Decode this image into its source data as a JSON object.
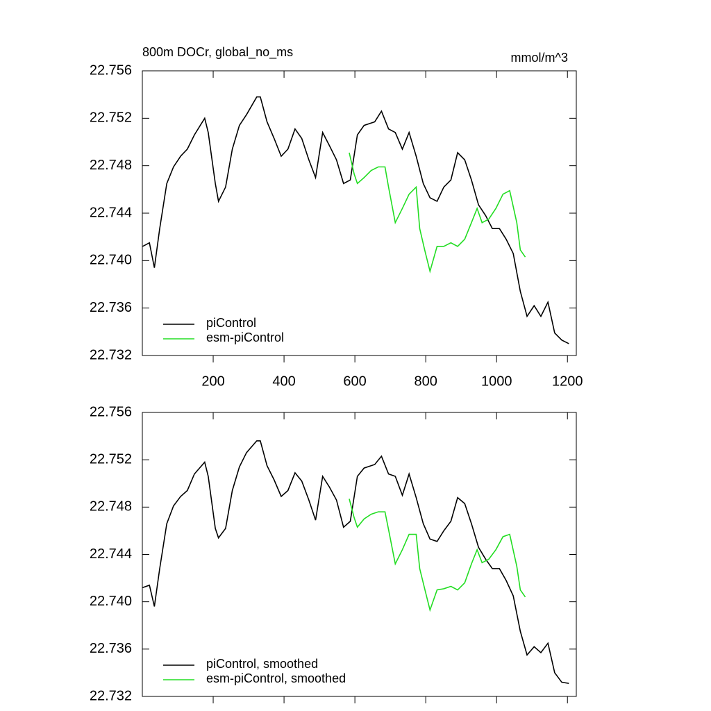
{
  "chart_data": [
    {
      "type": "line",
      "title": "800m DOCr, global_no_ms",
      "units": "mmol/m^3",
      "xlim": [
        0,
        1225
      ],
      "ylim": [
        22.732,
        22.756
      ],
      "xticks": [
        200,
        400,
        600,
        800,
        1000,
        1200
      ],
      "yticks": [
        {
          "value": 22.756,
          "label": "22.756"
        },
        {
          "value": 22.752,
          "label": "22.752"
        },
        {
          "value": 22.748,
          "label": "22.748"
        },
        {
          "value": 22.744,
          "label": "22.744"
        },
        {
          "value": 22.74,
          "label": "22.740"
        },
        {
          "value": 22.736,
          "label": "22.736"
        },
        {
          "value": 22.732,
          "label": "22.732"
        }
      ],
      "series": [
        {
          "name": "piControl",
          "color": "#000000",
          "x": [
            1,
            20,
            34,
            49,
            69,
            88,
            108,
            127,
            147,
            176,
            186,
            206,
            215,
            235,
            254,
            274,
            294,
            323,
            333,
            352,
            372,
            392,
            411,
            431,
            450,
            470,
            489,
            509,
            528,
            548,
            568,
            587,
            607,
            626,
            656,
            675,
            695,
            714,
            734,
            753,
            773,
            793,
            812,
            832,
            851,
            871,
            890,
            910,
            929,
            949,
            969,
            988,
            1008,
            1027,
            1047,
            1067,
            1086,
            1106,
            1125,
            1145,
            1164,
            1184,
            1204
          ],
          "values": [
            22.7412,
            22.7415,
            22.7394,
            22.7427,
            22.7465,
            22.7479,
            22.7488,
            22.7494,
            22.7506,
            22.752,
            22.7508,
            22.7465,
            22.745,
            22.7462,
            22.7494,
            22.7514,
            22.7523,
            22.7538,
            22.7538,
            22.7517,
            22.7503,
            22.7488,
            22.7494,
            22.7511,
            22.7503,
            22.7485,
            22.747,
            22.7508,
            22.7497,
            22.7485,
            22.7465,
            22.7468,
            22.7506,
            22.7514,
            22.7517,
            22.7526,
            22.7511,
            22.7508,
            22.7494,
            22.7508,
            22.7488,
            22.7465,
            22.7453,
            22.745,
            22.7462,
            22.7468,
            22.7491,
            22.7485,
            22.7468,
            22.7447,
            22.7438,
            22.7427,
            22.7427,
            22.7418,
            22.7406,
            22.7374,
            22.7353,
            22.7362,
            22.7353,
            22.7365,
            22.7339,
            22.7333,
            22.733
          ]
        },
        {
          "name": "esm-piControl",
          "color": "#22dd22",
          "x": [
            584,
            598,
            607,
            626,
            646,
            666,
            685,
            695,
            714,
            734,
            753,
            773,
            783,
            797,
            812,
            832,
            851,
            871,
            890,
            910,
            929,
            945,
            959,
            978,
            998,
            1018,
            1037,
            1057,
            1067,
            1081
          ],
          "values": [
            22.7491,
            22.7473,
            22.7465,
            22.747,
            22.7476,
            22.7479,
            22.7479,
            22.7462,
            22.7432,
            22.7444,
            22.7456,
            22.7462,
            22.7427,
            22.7409,
            22.7391,
            22.7412,
            22.7412,
            22.7415,
            22.7412,
            22.7418,
            22.7432,
            22.7444,
            22.7432,
            22.7435,
            22.7444,
            22.7456,
            22.7459,
            22.7432,
            22.7409,
            22.7403
          ]
        }
      ]
    },
    {
      "type": "line",
      "xlim": [
        0,
        1225
      ],
      "ylim": [
        22.732,
        22.756
      ],
      "yticks": [
        {
          "value": 22.756,
          "label": "22.756"
        },
        {
          "value": 22.752,
          "label": "22.752"
        },
        {
          "value": 22.748,
          "label": "22.748"
        },
        {
          "value": 22.744,
          "label": "22.744"
        },
        {
          "value": 22.74,
          "label": "22.740"
        },
        {
          "value": 22.736,
          "label": "22.736"
        },
        {
          "value": 22.732,
          "label": "22.732"
        }
      ],
      "series": [
        {
          "name": "piControl, smoothed",
          "color": "#000000",
          "x": [
            1,
            20,
            34,
            49,
            69,
            88,
            108,
            127,
            147,
            176,
            186,
            206,
            215,
            235,
            254,
            274,
            294,
            323,
            333,
            352,
            372,
            392,
            411,
            431,
            450,
            470,
            489,
            509,
            528,
            548,
            568,
            587,
            607,
            626,
            656,
            675,
            695,
            714,
            734,
            753,
            773,
            793,
            812,
            832,
            851,
            871,
            890,
            910,
            929,
            949,
            969,
            988,
            1008,
            1027,
            1047,
            1067,
            1086,
            1106,
            1125,
            1145,
            1164,
            1184,
            1204
          ],
          "values": [
            22.7412,
            22.7414,
            22.7396,
            22.7428,
            22.7466,
            22.7481,
            22.7489,
            22.7494,
            22.7508,
            22.7518,
            22.7506,
            22.7462,
            22.7454,
            22.7462,
            22.7494,
            22.7514,
            22.7526,
            22.7536,
            22.7536,
            22.7515,
            22.7503,
            22.7489,
            22.7494,
            22.7509,
            22.7502,
            22.7486,
            22.7469,
            22.7506,
            22.7497,
            22.7486,
            22.7463,
            22.7468,
            22.7506,
            22.7513,
            22.7516,
            22.7523,
            22.7508,
            22.7506,
            22.749,
            22.7508,
            22.7488,
            22.7466,
            22.7453,
            22.7451,
            22.746,
            22.7468,
            22.7488,
            22.7483,
            22.7466,
            22.7446,
            22.7436,
            22.7428,
            22.7428,
            22.7418,
            22.7405,
            22.7375,
            22.7355,
            22.7362,
            22.7357,
            22.7365,
            22.734,
            22.7332,
            22.7331
          ]
        },
        {
          "name": "esm-piControl, smoothed",
          "color": "#22dd22",
          "x": [
            584,
            598,
            607,
            626,
            646,
            666,
            685,
            695,
            714,
            734,
            753,
            773,
            783,
            797,
            812,
            832,
            851,
            871,
            890,
            910,
            929,
            945,
            959,
            978,
            998,
            1018,
            1037,
            1057,
            1067,
            1081
          ],
          "values": [
            22.7487,
            22.7471,
            22.7463,
            22.747,
            22.7474,
            22.7476,
            22.7476,
            22.7461,
            22.7432,
            22.7444,
            22.7457,
            22.7457,
            22.7428,
            22.7411,
            22.7393,
            22.741,
            22.7411,
            22.7413,
            22.741,
            22.7416,
            22.7432,
            22.7444,
            22.7433,
            22.7436,
            22.7444,
            22.7455,
            22.7457,
            22.743,
            22.741,
            22.7404
          ]
        }
      ]
    }
  ]
}
